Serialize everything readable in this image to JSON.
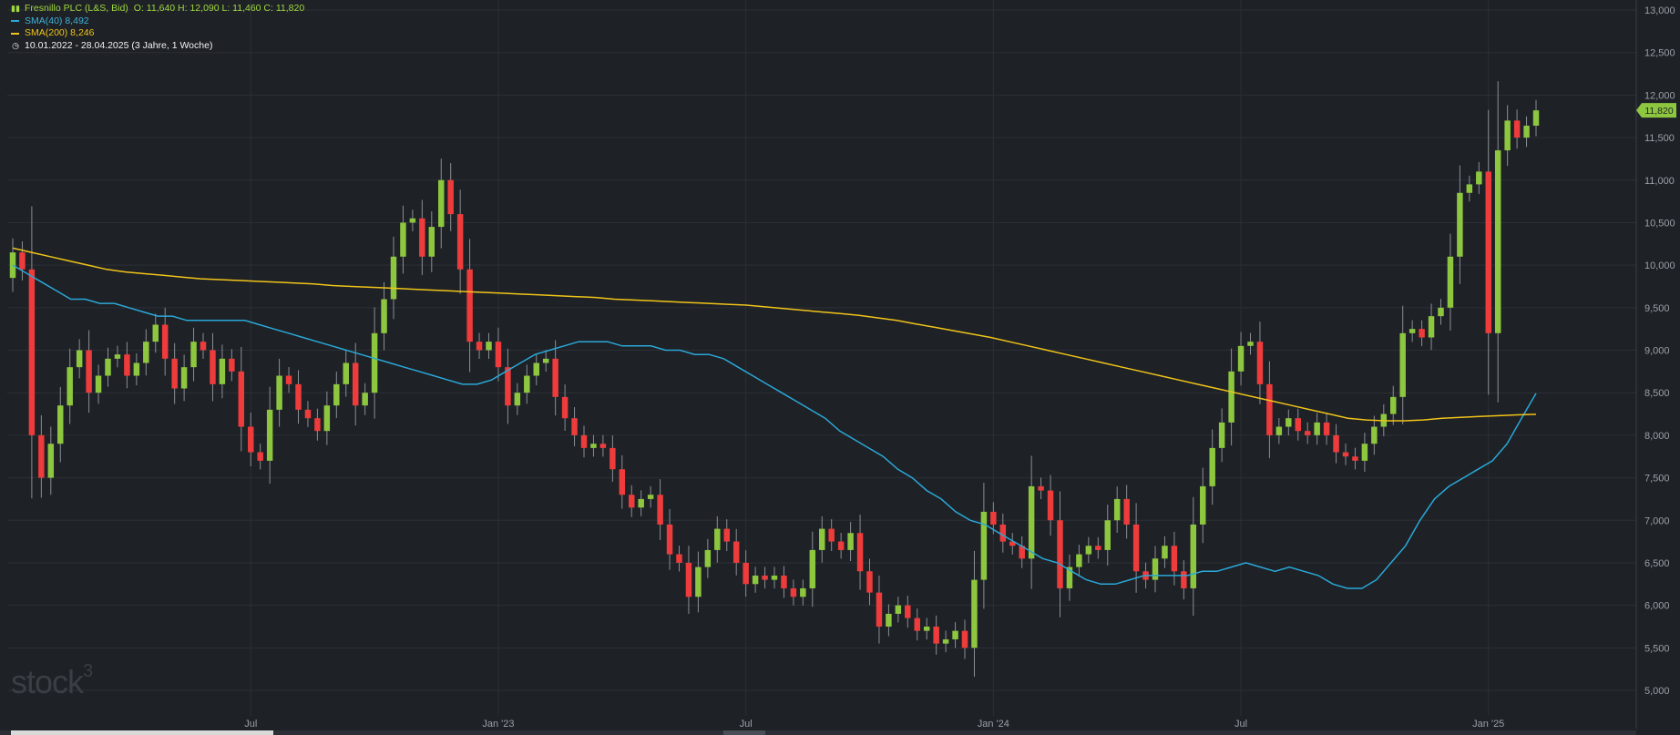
{
  "legend": {
    "instrument": "Fresnillo PLC (L&S, Bid)",
    "ohlc": "O: 11,640  H: 12,090  L: 11,460  C: 11,820",
    "sma40": "SMA(40)  8,492",
    "sma200": "SMA(200)  8,246",
    "range": "10.01.2022 - 28.04.2025  (3 Jahre, 1 Woche)"
  },
  "logo": {
    "text": "stock",
    "superscript": "3"
  },
  "colors": {
    "background": "#1e2126",
    "grid": "#2c3036",
    "up": "#8dc63f",
    "down": "#ee3b3b",
    "sma40": "#2aa8d8",
    "sma200": "#f0c419",
    "axis_text": "#9aa0a8",
    "price_tag": "#8dc63f"
  },
  "chart_data": {
    "type": "candlestick",
    "x_ticks": [
      {
        "label": "Jul",
        "index": 25
      },
      {
        "label": "Jan '23",
        "index": 51
      },
      {
        "label": "Jul",
        "index": 77
      },
      {
        "label": "Jan '24",
        "index": 103
      },
      {
        "label": "Jul",
        "index": 129
      },
      {
        "label": "Jan '25",
        "index": 155
      }
    ],
    "y_ticks": [
      5000,
      5500,
      6000,
      6500,
      7000,
      7500,
      8000,
      8500,
      9000,
      9500,
      10000,
      10500,
      11000,
      11500,
      12000,
      12500,
      13000
    ],
    "y_tick_labels": [
      "5,000",
      "5,500",
      "6,000",
      "6,500",
      "7,000",
      "7,500",
      "8,000",
      "8,500",
      "9,000",
      "9,500",
      "10,000",
      "10,500",
      "11,000",
      "11,500",
      "12,000",
      "12,500",
      "13,000"
    ],
    "ylim": [
      4600,
      13100
    ],
    "last_price": 11820,
    "last_price_label": "11,820",
    "closes": [
      10150,
      9950,
      8000,
      7500,
      7900,
      8350,
      8800,
      9000,
      8500,
      8700,
      8900,
      8950,
      8700,
      8850,
      9100,
      9300,
      8900,
      8550,
      8800,
      9100,
      9000,
      8600,
      8900,
      8750,
      8100,
      7800,
      7700,
      8300,
      8700,
      8600,
      8300,
      8200,
      8050,
      8350,
      8600,
      8850,
      8350,
      8500,
      9200,
      9600,
      10100,
      10500,
      10550,
      10100,
      10450,
      11000,
      10600,
      9950,
      9100,
      9000,
      9100,
      8800,
      8350,
      8500,
      8700,
      8850,
      8900,
      8450,
      8200,
      8000,
      7850,
      7900,
      7850,
      7600,
      7300,
      7150,
      7250,
      7300,
      6950,
      6600,
      6500,
      6100,
      6450,
      6650,
      6900,
      6750,
      6500,
      6250,
      6350,
      6300,
      6350,
      6200,
      6100,
      6200,
      6650,
      6900,
      6750,
      6650,
      6850,
      6400,
      6150,
      5750,
      5900,
      6000,
      5850,
      5700,
      5750,
      5550,
      5600,
      5700,
      5500,
      6300,
      7100,
      6950,
      6750,
      6700,
      6550,
      7400,
      7350,
      7000,
      6200,
      6450,
      6600,
      6700,
      6650,
      7000,
      7250,
      6950,
      6400,
      6300,
      6550,
      6700,
      6400,
      6200,
      6950,
      7400,
      7850,
      8150,
      8750,
      9050,
      9100,
      8600,
      8000,
      8100,
      8200,
      8050,
      8000,
      8150,
      8000,
      7800,
      7750,
      7700,
      7900,
      8100,
      8250,
      8450,
      9200,
      9250,
      9150,
      9400,
      9500,
      10100,
      10850,
      10950,
      11100,
      9200,
      11350,
      11700,
      11500,
      11640,
      11820
    ],
    "series": [
      {
        "name": "SMA(40)",
        "start_index": 0,
        "values": [
          10000,
          9900,
          9800,
          9700,
          9600,
          9600,
          9550,
          9550,
          9500,
          9450,
          9400,
          9400,
          9350,
          9350,
          9350,
          9350,
          9350,
          9300,
          9250,
          9200,
          9150,
          9100,
          9050,
          9000,
          8950,
          8900,
          8850,
          8800,
          8750,
          8700,
          8650,
          8600,
          8600,
          8650,
          8750,
          8850,
          8950,
          9000,
          9050,
          9100,
          9100,
          9100,
          9050,
          9050,
          9050,
          9000,
          9000,
          8950,
          8950,
          8900,
          8800,
          8700,
          8600,
          8500,
          8400,
          8300,
          8200,
          8050,
          7950,
          7850,
          7750,
          7600,
          7500,
          7350,
          7250,
          7100,
          7000,
          6950,
          6850,
          6750,
          6650,
          6550,
          6500,
          6400,
          6300,
          6250,
          6250,
          6300,
          6350,
          6350,
          6350,
          6350,
          6400,
          6400,
          6450,
          6500,
          6450,
          6400,
          6450,
          6400,
          6350,
          6250,
          6200,
          6200,
          6300,
          6500,
          6700,
          7000,
          7250,
          7400,
          7500,
          7600,
          7700,
          7900,
          8200,
          8492
        ]
      },
      {
        "name": "SMA(200)",
        "start_index": 0,
        "values": [
          10200,
          10150,
          10100,
          10050,
          10000,
          9950,
          9920,
          9900,
          9880,
          9860,
          9840,
          9830,
          9820,
          9810,
          9800,
          9790,
          9780,
          9760,
          9750,
          9740,
          9730,
          9720,
          9710,
          9700,
          9690,
          9680,
          9670,
          9660,
          9650,
          9640,
          9630,
          9620,
          9600,
          9590,
          9580,
          9570,
          9560,
          9550,
          9540,
          9530,
          9510,
          9490,
          9470,
          9450,
          9430,
          9410,
          9380,
          9350,
          9310,
          9270,
          9230,
          9190,
          9150,
          9100,
          9050,
          9000,
          8950,
          8900,
          8850,
          8800,
          8750,
          8700,
          8650,
          8600,
          8550,
          8500,
          8450,
          8400,
          8350,
          8300,
          8250,
          8200,
          8180,
          8170,
          8170,
          8180,
          8200,
          8210,
          8220,
          8230,
          8240,
          8246
        ]
      }
    ]
  }
}
